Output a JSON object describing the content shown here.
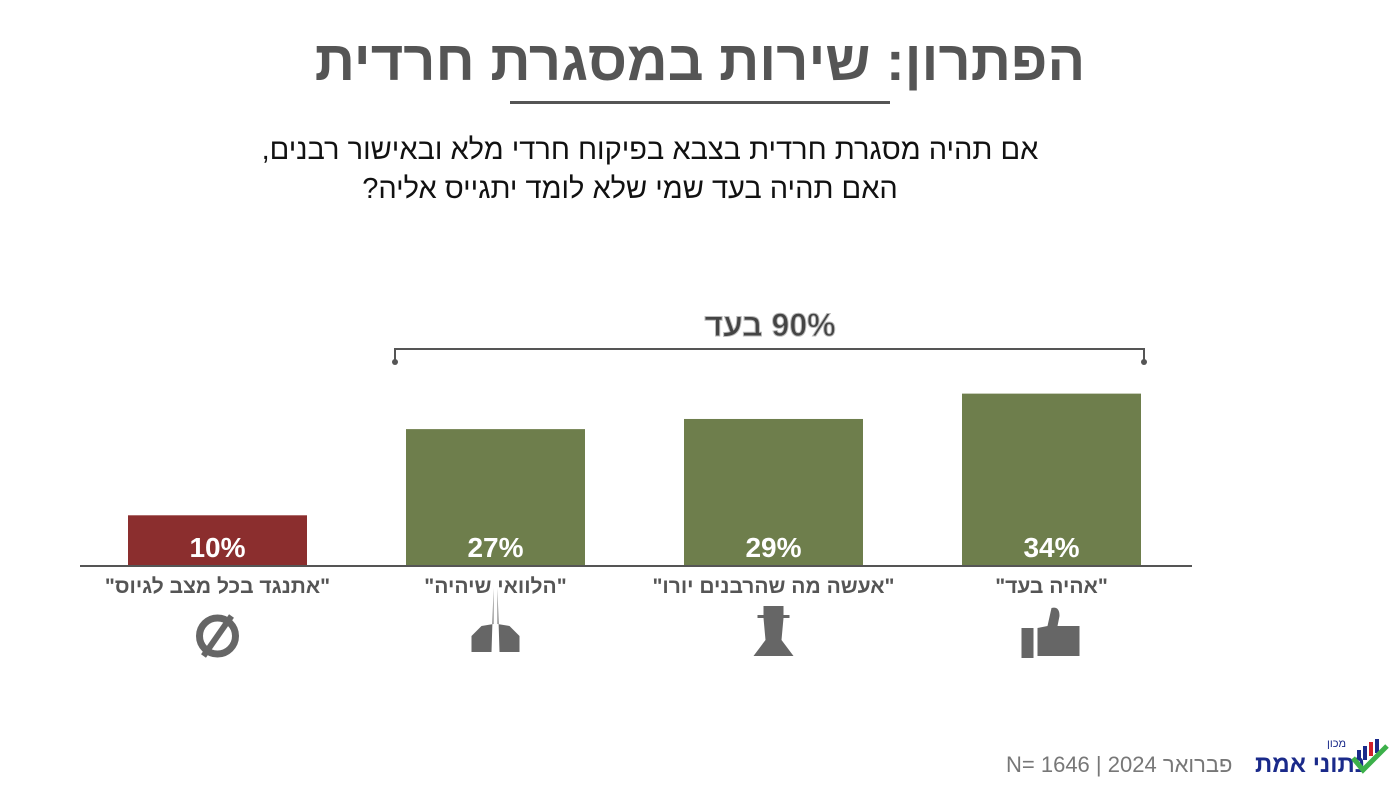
{
  "title": "הפתרון: שירות במסגרת חרדית",
  "subtitle_lines": [
    "אם תהיה מסגרת חרדית בצבא בפיקוח חרדי מלא ובאישור רבנים,",
    "האם תהיה בעד שמי שלא לומד יתגייס אליה?"
  ],
  "footer": {
    "sample": "N= 1646",
    "date": "פברואר 2024",
    "separator": "|"
  },
  "logo": {
    "small": "מכון",
    "big": "נתוני אמת"
  },
  "chart_data": {
    "type": "bar",
    "categories": [
      "\"אתנגד בכל מצב לגיוס\"",
      "\"הלוואי שיהיה\"",
      "\"אעשה מה שהרבנים יורו\"",
      "\"אהיה בעד\""
    ],
    "values": [
      10,
      27,
      29,
      34
    ],
    "value_labels": [
      "10%",
      "27%",
      "29%",
      "34%"
    ],
    "colors": [
      "#8b2e2e",
      "#6e7e4c",
      "#6e7e4c",
      "#6e7e4c"
    ],
    "icons": [
      "prohibited-icon",
      "praying-hands-icon",
      "haredi-man-icon",
      "thumbs-up-icon"
    ],
    "bracket_label": "90% בעד",
    "grid": false
  }
}
